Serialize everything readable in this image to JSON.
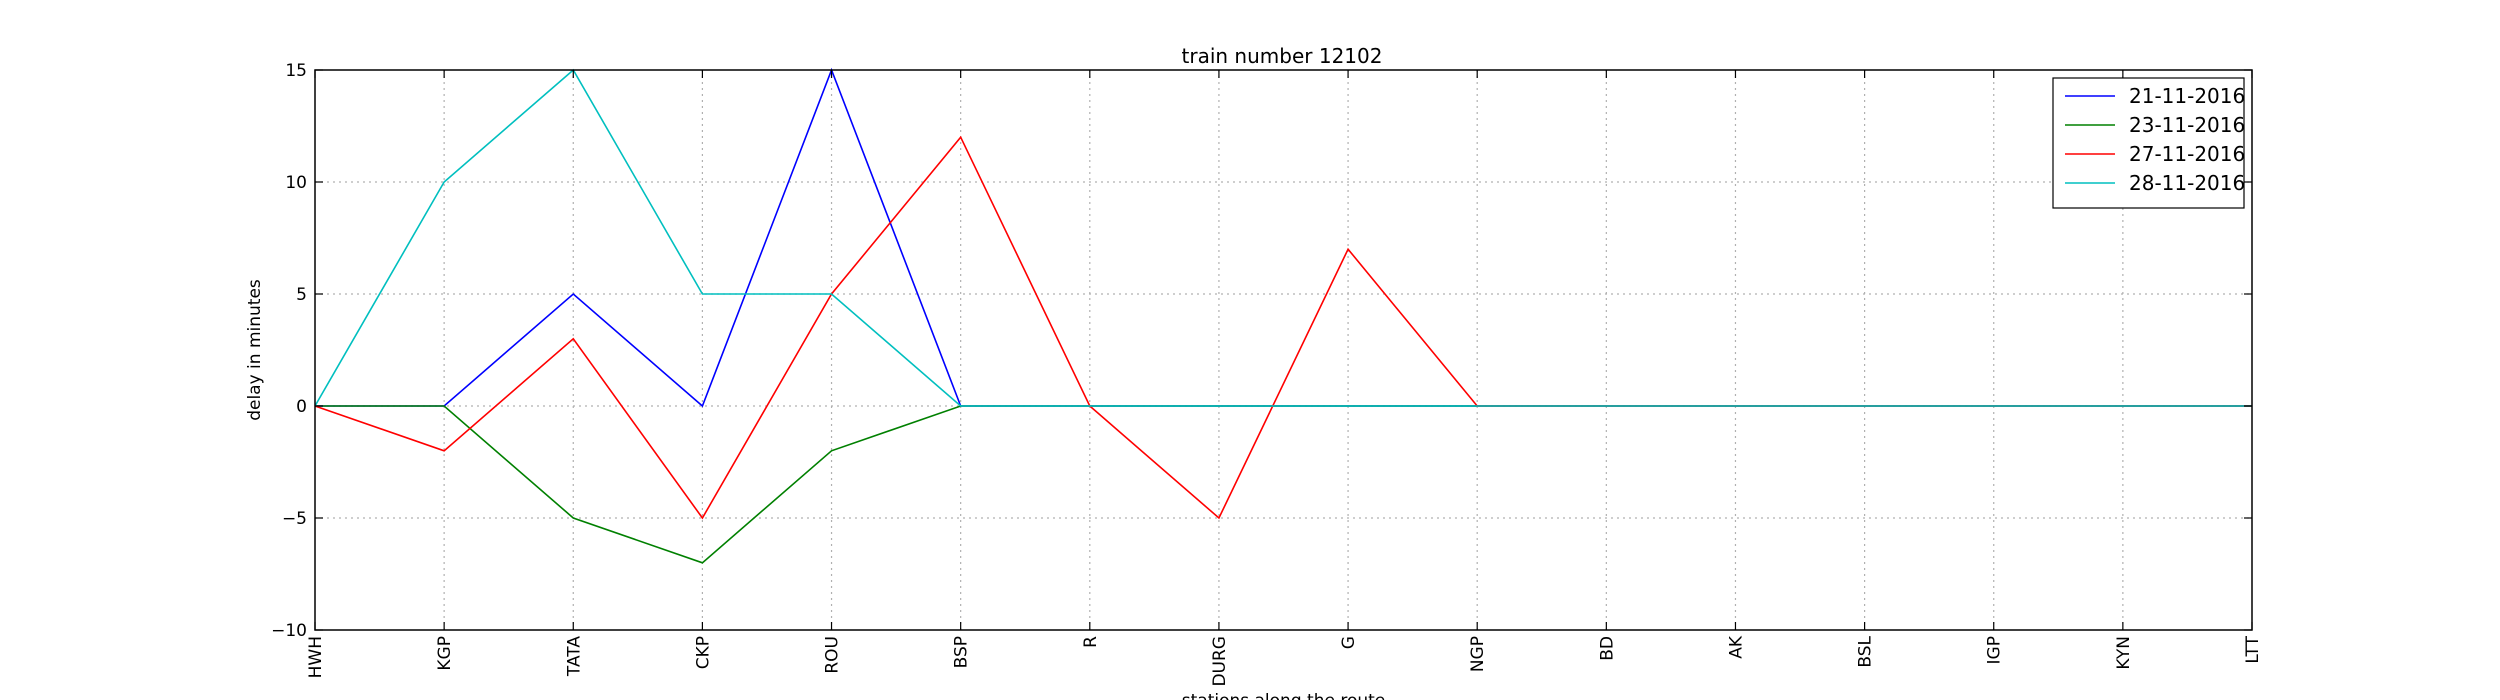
{
  "chart_data": {
    "type": "line",
    "title": "train number 12102",
    "xlabel": "stations along the route",
    "ylabel": "delay in minutes",
    "categories": [
      "HWH",
      "KGP",
      "TATA",
      "CKP",
      "ROU",
      "BSP",
      "R",
      "DURG",
      "G",
      "NGP",
      "BD",
      "AK",
      "BSL",
      "IGP",
      "KYN",
      "LTT"
    ],
    "ylim": [
      -10,
      15
    ],
    "yticks": [
      "−10",
      "−5",
      "0",
      "5",
      "10",
      "15"
    ],
    "ytick_values": [
      -10,
      -5,
      0,
      5,
      10,
      15
    ],
    "grid": true,
    "legend_position": "top-right",
    "series": [
      {
        "name": "21-11-2016",
        "color": "#0000ff",
        "values": [
          0,
          0,
          5,
          0,
          15,
          0,
          0,
          0,
          0,
          0,
          0,
          0,
          0,
          0,
          0,
          0
        ]
      },
      {
        "name": "23-11-2016",
        "color": "#008000",
        "values": [
          0,
          0,
          -5,
          -7,
          -2,
          0,
          0,
          0,
          0,
          0,
          0,
          0,
          0,
          0,
          0,
          0
        ]
      },
      {
        "name": "27-11-2016",
        "color": "#ff0000",
        "values": [
          0,
          -2,
          3,
          -5,
          5,
          12,
          0,
          -5,
          7,
          0,
          0,
          0,
          0,
          0,
          0,
          0
        ]
      },
      {
        "name": "28-11-2016",
        "color": "#00bfbf",
        "values": [
          0,
          10,
          15,
          5,
          5,
          0,
          0,
          0,
          0,
          0,
          0,
          0,
          0,
          0,
          0,
          0
        ]
      }
    ]
  }
}
